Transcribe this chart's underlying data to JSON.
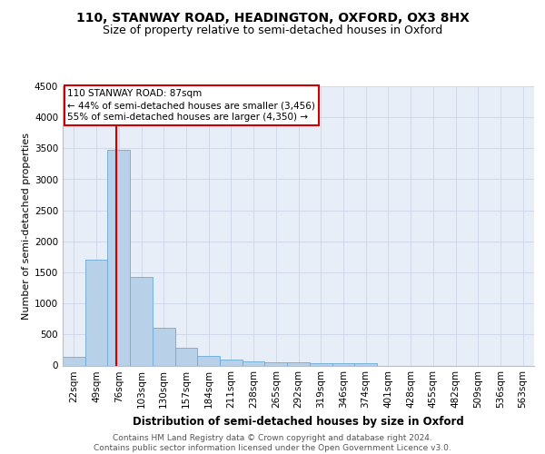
{
  "title1": "110, STANWAY ROAD, HEADINGTON, OXFORD, OX3 8HX",
  "title2": "Size of property relative to semi-detached houses in Oxford",
  "xlabel": "Distribution of semi-detached houses by size in Oxford",
  "ylabel": "Number of semi-detached properties",
  "footer": "Contains HM Land Registry data © Crown copyright and database right 2024.\nContains public sector information licensed under the Open Government Licence v3.0.",
  "bin_labels": [
    "22sqm",
    "49sqm",
    "76sqm",
    "103sqm",
    "130sqm",
    "157sqm",
    "184sqm",
    "211sqm",
    "238sqm",
    "265sqm",
    "292sqm",
    "319sqm",
    "346sqm",
    "374sqm",
    "401sqm",
    "428sqm",
    "455sqm",
    "482sqm",
    "509sqm",
    "536sqm",
    "563sqm"
  ],
  "bar_values": [
    140,
    1700,
    3480,
    1420,
    610,
    290,
    155,
    100,
    65,
    55,
    45,
    40,
    40,
    40,
    0,
    0,
    0,
    0,
    0,
    0,
    0
  ],
  "bar_color": "#b8d0e8",
  "bar_edge_color": "#6aaad4",
  "annotation_text": "110 STANWAY ROAD: 87sqm\n← 44% of semi-detached houses are smaller (3,456)\n55% of semi-detached houses are larger (4,350) →",
  "annotation_box_color": "#ffffff",
  "annotation_edge_color": "#cc0000",
  "red_line_color": "#cc0000",
  "ylim": [
    0,
    4500
  ],
  "yticks": [
    0,
    500,
    1000,
    1500,
    2000,
    2500,
    3000,
    3500,
    4000,
    4500
  ],
  "grid_color": "#ccd6e8",
  "background_color": "#e8eef8",
  "title1_fontsize": 10,
  "title2_fontsize": 9,
  "xlabel_fontsize": 8.5,
  "ylabel_fontsize": 8,
  "tick_fontsize": 7.5,
  "footer_fontsize": 6.5
}
